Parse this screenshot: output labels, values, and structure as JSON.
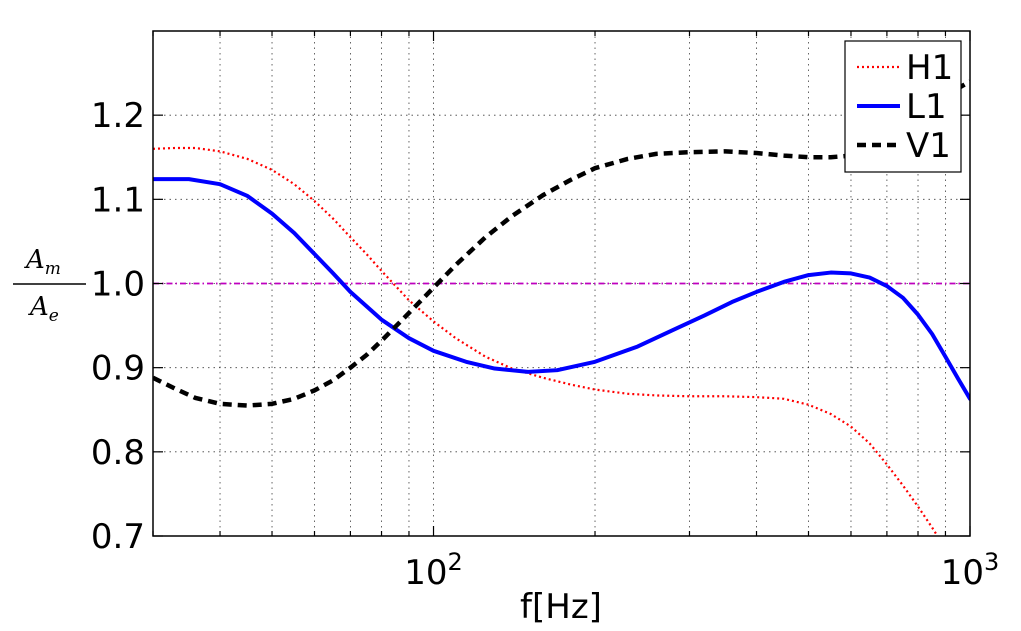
{
  "chart_data": {
    "type": "line",
    "xscale": "log",
    "xlim": [
      30,
      1000
    ],
    "ylim": [
      0.7,
      1.3
    ],
    "xlabel": "f[Hz]",
    "ylabel": {
      "numerator": "A",
      "numerator_sub": "m",
      "denominator": "A",
      "denominator_sub": "e"
    },
    "x_ticks": [
      {
        "value": 100,
        "base": "10",
        "exp": "2"
      },
      {
        "value": 1000,
        "base": "10",
        "exp": "3"
      }
    ],
    "y_ticks": [
      0.7,
      0.8,
      0.9,
      1.0,
      1.1,
      1.2
    ],
    "y_tick_labels": [
      "0.7",
      "0.8",
      "0.9",
      "1.0",
      "1.1",
      "1.2"
    ],
    "grid": true,
    "legend_position": "top-right",
    "reference_line": {
      "y": 1.0,
      "color": "#bf00bf",
      "style": "dash-dot"
    },
    "series": [
      {
        "name": "H1",
        "color": "#ff0000",
        "style": "dotted",
        "points": [
          [
            30,
            1.16
          ],
          [
            33,
            1.161
          ],
          [
            36,
            1.161
          ],
          [
            40,
            1.157
          ],
          [
            45,
            1.148
          ],
          [
            50,
            1.135
          ],
          [
            55,
            1.118
          ],
          [
            60,
            1.098
          ],
          [
            65,
            1.077
          ],
          [
            70,
            1.055
          ],
          [
            75,
            1.035
          ],
          [
            80,
            1.015
          ],
          [
            90,
            0.98
          ],
          [
            100,
            0.955
          ],
          [
            110,
            0.935
          ],
          [
            125,
            0.913
          ],
          [
            140,
            0.899
          ],
          [
            160,
            0.888
          ],
          [
            180,
            0.88
          ],
          [
            200,
            0.874
          ],
          [
            230,
            0.869
          ],
          [
            260,
            0.867
          ],
          [
            300,
            0.866
          ],
          [
            350,
            0.866
          ],
          [
            400,
            0.865
          ],
          [
            450,
            0.863
          ],
          [
            500,
            0.856
          ],
          [
            550,
            0.845
          ],
          [
            600,
            0.83
          ],
          [
            650,
            0.81
          ],
          [
            700,
            0.785
          ],
          [
            750,
            0.76
          ],
          [
            800,
            0.735
          ],
          [
            850,
            0.71
          ],
          [
            890,
            0.69
          ]
        ]
      },
      {
        "name": "L1",
        "color": "#0000ff",
        "style": "solid",
        "points": [
          [
            30,
            1.124
          ],
          [
            35,
            1.124
          ],
          [
            40,
            1.118
          ],
          [
            45,
            1.104
          ],
          [
            50,
            1.083
          ],
          [
            55,
            1.06
          ],
          [
            60,
            1.035
          ],
          [
            65,
            1.012
          ],
          [
            70,
            0.99
          ],
          [
            80,
            0.957
          ],
          [
            90,
            0.935
          ],
          [
            100,
            0.92
          ],
          [
            115,
            0.907
          ],
          [
            130,
            0.899
          ],
          [
            150,
            0.895
          ],
          [
            170,
            0.897
          ],
          [
            200,
            0.907
          ],
          [
            240,
            0.925
          ],
          [
            280,
            0.945
          ],
          [
            320,
            0.962
          ],
          [
            360,
            0.978
          ],
          [
            400,
            0.99
          ],
          [
            450,
            1.002
          ],
          [
            500,
            1.01
          ],
          [
            550,
            1.013
          ],
          [
            600,
            1.012
          ],
          [
            650,
            1.007
          ],
          [
            700,
            0.997
          ],
          [
            750,
            0.983
          ],
          [
            800,
            0.963
          ],
          [
            850,
            0.94
          ],
          [
            900,
            0.913
          ],
          [
            950,
            0.887
          ],
          [
            1000,
            0.863
          ]
        ]
      },
      {
        "name": "V1",
        "color": "#000000",
        "style": "dashed",
        "points": [
          [
            30,
            0.888
          ],
          [
            33,
            0.875
          ],
          [
            36,
            0.864
          ],
          [
            40,
            0.857
          ],
          [
            45,
            0.855
          ],
          [
            50,
            0.857
          ],
          [
            55,
            0.863
          ],
          [
            60,
            0.873
          ],
          [
            65,
            0.885
          ],
          [
            70,
            0.9
          ],
          [
            75,
            0.915
          ],
          [
            80,
            0.932
          ],
          [
            90,
            0.965
          ],
          [
            100,
            0.995
          ],
          [
            110,
            1.022
          ],
          [
            125,
            1.055
          ],
          [
            140,
            1.08
          ],
          [
            160,
            1.105
          ],
          [
            180,
            1.123
          ],
          [
            200,
            1.137
          ],
          [
            230,
            1.148
          ],
          [
            260,
            1.154
          ],
          [
            300,
            1.156
          ],
          [
            350,
            1.157
          ],
          [
            400,
            1.155
          ],
          [
            450,
            1.152
          ],
          [
            500,
            1.15
          ],
          [
            550,
            1.15
          ],
          [
            600,
            1.152
          ],
          [
            650,
            1.156
          ],
          [
            700,
            1.165
          ],
          [
            750,
            1.177
          ],
          [
            800,
            1.192
          ],
          [
            850,
            1.207
          ],
          [
            900,
            1.222
          ],
          [
            950,
            1.232
          ],
          [
            1000,
            1.24
          ]
        ]
      }
    ]
  }
}
